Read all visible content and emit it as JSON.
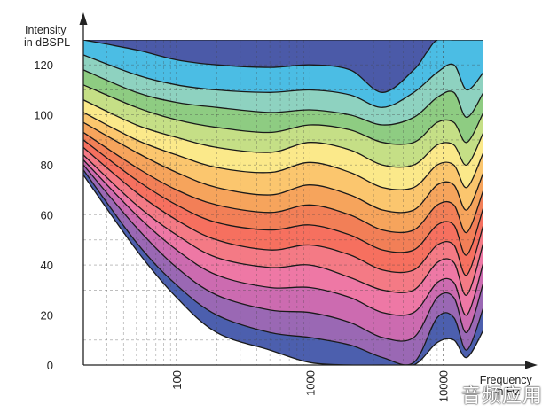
{
  "chart_data": {
    "type": "area",
    "ylabel_lines": [
      "Intensity",
      "in dBSPL"
    ],
    "xlabel_lines": [
      "Frequency",
      "in Hz"
    ],
    "x_scale": "log",
    "xlim": [
      20,
      20000
    ],
    "ylim": [
      0,
      130
    ],
    "y_ticks": [
      0,
      20,
      40,
      60,
      80,
      100,
      120
    ],
    "x_ticks": [
      100,
      1000,
      10000
    ],
    "x_tick_labels": [
      "100",
      "1000",
      "10000"
    ],
    "grid": "dashed",
    "colors": {
      "above_top": "#4b5aa8",
      "below_bottom": "#ffffff",
      "bands": [
        "#4c5fae",
        "#9a68b4",
        "#cc6bb0",
        "#ee78a5",
        "#f47a85",
        "#f6705f",
        "#f27f57",
        "#f6a45c",
        "#fbc66e",
        "#fbe98a",
        "#c5df86",
        "#8ecc82",
        "#8ed2c0",
        "#4bbde4"
      ]
    },
    "curves": [
      {
        "x": [
          20,
          50,
          100,
          200,
          500,
          1000,
          2000,
          3500,
          6000,
          9000,
          12000,
          15000,
          20000
        ],
        "y": [
          76,
          46,
          27,
          13,
          6,
          1,
          -1,
          -3,
          -4,
          9,
          10,
          3,
          14
        ]
      },
      {
        "x": [
          20,
          50,
          100,
          200,
          500,
          1000,
          2000,
          3500,
          6000,
          9000,
          12000,
          15000,
          20000
        ],
        "y": [
          78,
          49,
          32,
          20,
          13,
          11,
          8,
          3,
          1,
          19,
          19,
          6,
          23
        ]
      },
      {
        "x": [
          20,
          50,
          100,
          200,
          500,
          1000,
          2000,
          3500,
          6000,
          9000,
          12000,
          15000,
          20000
        ],
        "y": [
          80,
          55,
          39,
          28,
          22,
          21,
          17,
          11,
          11,
          27,
          27,
          13,
          33
        ]
      },
      {
        "x": [
          20,
          50,
          100,
          200,
          500,
          1000,
          2000,
          3500,
          6000,
          9000,
          12000,
          15000,
          20000
        ],
        "y": [
          82,
          60,
          46,
          36,
          31,
          31,
          27,
          21,
          21,
          33,
          33,
          20,
          41
        ]
      },
      {
        "x": [
          20,
          50,
          100,
          200,
          500,
          1000,
          2000,
          3500,
          6000,
          9000,
          12000,
          15000,
          20000
        ],
        "y": [
          84,
          64,
          52,
          43,
          39,
          40,
          35,
          30,
          30,
          41,
          41,
          28,
          49
        ]
      },
      {
        "x": [
          20,
          50,
          100,
          200,
          500,
          1000,
          2000,
          3500,
          6000,
          9000,
          12000,
          15000,
          20000
        ],
        "y": [
          87,
          69,
          58,
          50,
          46,
          48,
          44,
          38,
          38,
          48,
          48,
          36,
          56
        ]
      },
      {
        "x": [
          20,
          50,
          100,
          200,
          500,
          1000,
          2000,
          3500,
          6000,
          9000,
          12000,
          15000,
          20000
        ],
        "y": [
          90,
          74,
          64,
          57,
          54,
          56,
          52,
          46,
          46,
          56,
          56,
          44,
          63
        ]
      },
      {
        "x": [
          20,
          50,
          100,
          200,
          500,
          1000,
          2000,
          3500,
          6000,
          9000,
          12000,
          15000,
          20000
        ],
        "y": [
          93,
          79,
          70,
          64,
          61,
          64,
          60,
          54,
          54,
          64,
          64,
          53,
          70
        ]
      },
      {
        "x": [
          20,
          50,
          100,
          200,
          500,
          1000,
          2000,
          3500,
          6000,
          9000,
          12000,
          15000,
          20000
        ],
        "y": [
          97,
          85,
          77,
          71,
          68,
          72,
          68,
          62,
          62,
          72,
          72,
          62,
          77
        ]
      },
      {
        "x": [
          20,
          50,
          100,
          200,
          500,
          1000,
          2000,
          3500,
          6000,
          9000,
          12000,
          15000,
          20000
        ],
        "y": [
          101,
          90,
          84,
          79,
          77,
          81,
          77,
          71,
          71,
          80,
          80,
          71,
          85
        ]
      },
      {
        "x": [
          20,
          50,
          100,
          200,
          500,
          1000,
          2000,
          3500,
          6000,
          9000,
          12000,
          15000,
          20000
        ],
        "y": [
          106,
          96,
          91,
          87,
          85,
          89,
          86,
          80,
          80,
          88,
          88,
          80,
          93
        ]
      },
      {
        "x": [
          20,
          50,
          100,
          200,
          500,
          1000,
          2000,
          3500,
          6000,
          9000,
          12000,
          15000,
          20000
        ],
        "y": [
          112,
          103,
          98,
          95,
          93,
          96,
          94,
          89,
          89,
          97,
          97,
          89,
          101
        ]
      },
      {
        "x": [
          20,
          50,
          100,
          200,
          500,
          1000,
          2000,
          3500,
          6000,
          9000,
          12000,
          15000,
          20000
        ],
        "y": [
          118,
          109,
          105,
          103,
          101,
          102,
          100,
          96,
          99,
          107,
          109,
          99,
          109
        ]
      },
      {
        "x": [
          20,
          50,
          100,
          200,
          500,
          1000,
          2000,
          3500,
          6000,
          9000,
          12000,
          15000,
          20000
        ],
        "y": [
          124,
          116,
          112,
          110,
          109,
          110,
          108,
          103,
          109,
          117,
          120,
          110,
          117
        ]
      },
      {
        "x": [
          20,
          50,
          100,
          200,
          500,
          1000,
          2000,
          3500,
          6000,
          7500,
          9000,
          12000,
          20000
        ],
        "y": [
          130,
          126,
          122,
          120,
          119,
          120,
          118,
          109,
          118,
          125,
          130,
          130,
          130
        ]
      }
    ],
    "dashed_levels": [
      10,
      20,
      30,
      40,
      50,
      60,
      70,
      80,
      90,
      100,
      110,
      120
    ]
  },
  "watermark_text": "音频应用"
}
